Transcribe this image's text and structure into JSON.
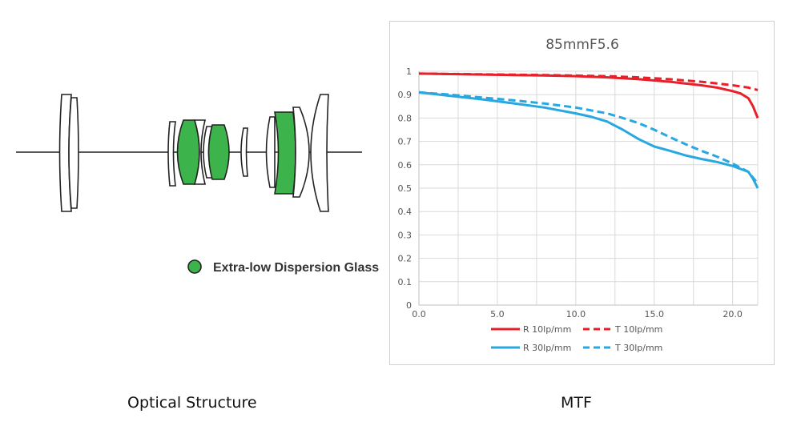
{
  "diagram": {
    "caption": "Optical Structure",
    "legend_label": "Extra-low Dispersion Glass",
    "legend_color": "#3cb44b"
  },
  "mtf": {
    "caption": "MTF"
  },
  "chart_data": {
    "type": "line",
    "title": "85mmF5.6",
    "xlim": [
      0,
      21.6
    ],
    "ylim": [
      0,
      1
    ],
    "x_ticks": [
      "0.0",
      "5.0",
      "10.0",
      "15.0",
      "20.0"
    ],
    "y_ticks": [
      "0",
      "0.1",
      "0.2",
      "0.3",
      "0.4",
      "0.5",
      "0.6",
      "0.7",
      "0.8",
      "0.9",
      "1"
    ],
    "grid": true,
    "legend_position": "bottom",
    "series": [
      {
        "name": "R 10lp/mm",
        "color": "#e8202a",
        "dash": false,
        "x": [
          0,
          2,
          4,
          6,
          8,
          10,
          12,
          14,
          16,
          18,
          19,
          20,
          20.5,
          21,
          21.3,
          21.6
        ],
        "y": [
          0.99,
          0.988,
          0.986,
          0.984,
          0.982,
          0.979,
          0.974,
          0.966,
          0.955,
          0.94,
          0.93,
          0.915,
          0.905,
          0.885,
          0.85,
          0.8
        ]
      },
      {
        "name": "T 10lp/mm",
        "color": "#e8202a",
        "dash": true,
        "x": [
          0,
          4,
          8,
          12,
          14,
          16,
          18,
          19,
          20,
          21,
          21.6
        ],
        "y": [
          0.99,
          0.987,
          0.984,
          0.979,
          0.974,
          0.966,
          0.955,
          0.948,
          0.94,
          0.93,
          0.92
        ]
      },
      {
        "name": "R 30lp/mm",
        "color": "#28a8e0",
        "dash": false,
        "x": [
          0,
          2,
          4,
          6,
          8,
          10,
          11,
          12,
          13,
          14,
          15,
          16,
          17,
          18,
          19,
          20,
          21,
          21.3,
          21.6
        ],
        "y": [
          0.91,
          0.895,
          0.88,
          0.863,
          0.845,
          0.82,
          0.805,
          0.785,
          0.75,
          0.71,
          0.678,
          0.66,
          0.64,
          0.625,
          0.612,
          0.595,
          0.57,
          0.54,
          0.5
        ]
      },
      {
        "name": "T 30lp/mm",
        "color": "#28a8e0",
        "dash": true,
        "x": [
          0,
          2,
          4,
          6,
          8,
          10,
          12,
          13,
          14,
          15,
          16,
          17,
          18,
          19,
          20,
          21,
          21.6
        ],
        "y": [
          0.91,
          0.9,
          0.888,
          0.876,
          0.862,
          0.845,
          0.82,
          0.8,
          0.778,
          0.75,
          0.718,
          0.688,
          0.66,
          0.635,
          0.605,
          0.57,
          0.52
        ]
      }
    ]
  }
}
